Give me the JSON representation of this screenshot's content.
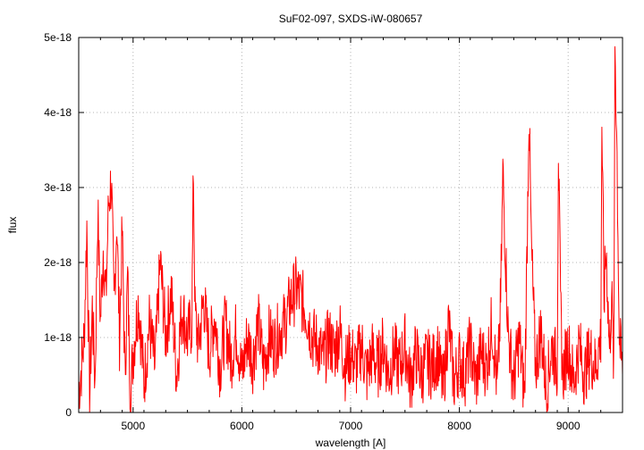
{
  "chart_data": {
    "type": "line",
    "title": "SuF02-097, SXDS-iW-080657",
    "xlabel": "wavelength [A]",
    "ylabel": "flux",
    "xlim": [
      4500,
      9500
    ],
    "ylim": [
      0,
      5e-18
    ],
    "x_ticks": [
      5000,
      6000,
      7000,
      8000,
      9000
    ],
    "x_tick_labels": [
      "5000",
      "6000",
      "7000",
      "8000",
      "9000"
    ],
    "y_ticks": [
      0,
      1e-18,
      2e-18,
      3e-18,
      4e-18,
      5e-18
    ],
    "y_tick_labels": [
      "0",
      "1e-18",
      "2e-18",
      "3e-18",
      "4e-18",
      "5e-18"
    ],
    "grid": true,
    "legend": "none",
    "colors": {
      "series": "#ff0000",
      "grid": "#b4b4b4",
      "axis": "#000000"
    },
    "series": [
      {
        "x": [
          4500,
          4525,
          4550,
          4575,
          4600,
          4625,
          4650,
          4675,
          4700,
          4725,
          4750,
          4775,
          4800,
          4825,
          4850,
          4875,
          4900,
          4925,
          4950,
          4975,
          5000,
          5050,
          5100,
          5150,
          5200,
          5250,
          5300,
          5350,
          5400,
          5450,
          5500,
          5540,
          5555,
          5570,
          5600,
          5650,
          5700,
          5750,
          5800,
          5850,
          5900,
          5950,
          6000,
          6050,
          6100,
          6150,
          6200,
          6250,
          6300,
          6350,
          6400,
          6450,
          6500,
          6550,
          6600,
          6650,
          6700,
          6750,
          6800,
          6850,
          6900,
          6950,
          7000,
          7050,
          7100,
          7150,
          7200,
          7250,
          7300,
          7350,
          7400,
          7450,
          7500,
          7550,
          7600,
          7650,
          7700,
          7750,
          7800,
          7850,
          7900,
          7950,
          8000,
          8050,
          8100,
          8150,
          8200,
          8250,
          8300,
          8350,
          8380,
          8400,
          8450,
          8500,
          8550,
          8600,
          8620,
          8640,
          8660,
          8700,
          8750,
          8800,
          8850,
          8900,
          8910,
          8930,
          8950,
          9000,
          9050,
          9100,
          9150,
          9200,
          9250,
          9300,
          9310,
          9330,
          9350,
          9380,
          9400,
          9420,
          9430,
          9450,
          9470,
          9500
        ],
        "y": [
          3e-19,
          6e-19,
          1e-18,
          2.5e-18,
          2e-19,
          1.4e-18,
          4e-19,
          2.7e-18,
          1.2e-18,
          2.2e-18,
          1.5e-18,
          2.8e-18,
          3.1e-18,
          1.4e-18,
          2.6e-18,
          1e-18,
          2.4e-18,
          5e-19,
          1.8e-18,
          2e-19,
          8e-19,
          1.5e-18,
          4e-19,
          1.2e-18,
          6e-19,
          2e-18,
          1e-18,
          1.6e-18,
          5e-19,
          1.4e-18,
          1e-18,
          1.2e-18,
          3.25e-18,
          1.3e-18,
          9e-19,
          1.5e-18,
          8e-19,
          1.3e-18,
          6e-19,
          1.2e-18,
          7e-19,
          1.1e-18,
          5e-19,
          1e-18,
          7e-19,
          1.2e-18,
          6e-19,
          1e-18,
          9e-19,
          1.1e-18,
          1.2e-18,
          1.5e-18,
          1.65e-18,
          1.5e-18,
          1.3e-18,
          1e-18,
          9e-19,
          7e-19,
          1e-18,
          8e-19,
          1.1e-18,
          6e-19,
          8e-19,
          6e-19,
          9e-19,
          5e-19,
          8e-19,
          6e-19,
          9e-19,
          5e-19,
          8e-19,
          6e-19,
          9e-19,
          4e-19,
          8e-19,
          5e-19,
          7e-19,
          6e-19,
          8e-19,
          3e-19,
          1.2e-18,
          4e-19,
          7e-19,
          5e-19,
          9e-19,
          4e-19,
          8e-19,
          6e-19,
          1.2e-18,
          3e-19,
          1.5e-18,
          3.2e-18,
          1e-18,
          4e-19,
          1e-18,
          2e-19,
          2e-18,
          4.05e-18,
          2.3e-18,
          6e-19,
          1.1e-18,
          3e-19,
          9e-19,
          6e-19,
          3.6e-18,
          1.4e-18,
          5e-19,
          9e-19,
          4e-19,
          9e-19,
          5e-19,
          8e-19,
          6e-19,
          1e-18,
          3.85e-18,
          1.5e-18,
          2.2e-18,
          8e-19,
          1.6e-18,
          5e-19,
          5e-18,
          3.4e-18,
          1e-18,
          5e-19
        ]
      }
    ]
  }
}
